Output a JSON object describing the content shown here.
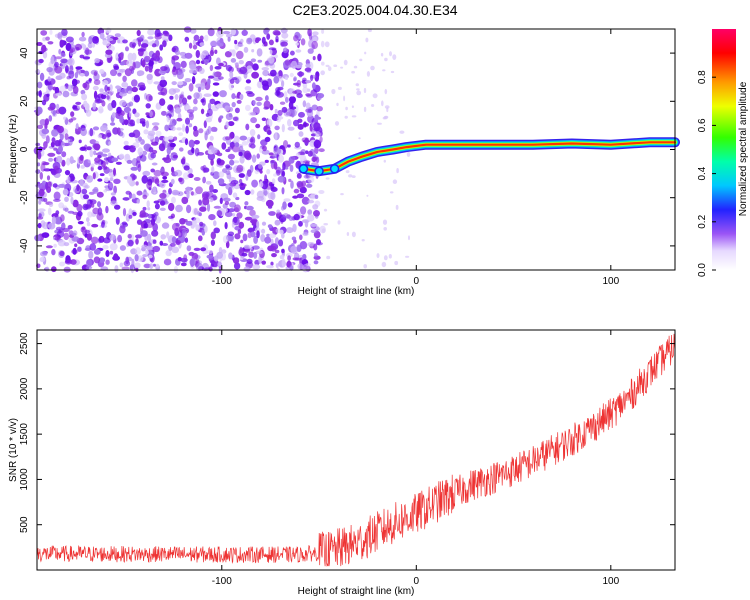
{
  "page_title": "C2E3.2025.004.04.30.E34",
  "chart_data": [
    {
      "type": "heatmap",
      "title": "C2E3.2025.004.04.30.E34",
      "xlabel": "Height of straight line (km)",
      "ylabel": "Frequency (Hz)",
      "xlim": [
        -195,
        133
      ],
      "ylim": [
        -50,
        50
      ],
      "x_ticks": [
        -100,
        0,
        100
      ],
      "x_tick_labels": [
        "-100",
        "0",
        "100"
      ],
      "y_ticks": [
        -40,
        -20,
        0,
        20,
        40
      ],
      "y_tick_labels": [
        "-40",
        "-20",
        "0",
        "20",
        "40"
      ],
      "colorbar": {
        "label": "Normalized spectral amplitude",
        "range": [
          0,
          1
        ],
        "ticks": [
          0.0,
          0.2,
          0.4,
          0.6,
          0.8
        ],
        "tick_labels": [
          "0.0",
          "0.2",
          "0.4",
          "0.6",
          "0.8"
        ]
      },
      "noise_region_x": [
        -195,
        -48
      ],
      "ridge": [
        {
          "x": -58,
          "y": -8,
          "amp": 0.35
        },
        {
          "x": -50,
          "y": -9,
          "amp": 0.4
        },
        {
          "x": -42,
          "y": -8,
          "amp": 0.5
        },
        {
          "x": -35,
          "y": -5,
          "amp": 0.5
        },
        {
          "x": -28,
          "y": -3,
          "amp": 0.55
        },
        {
          "x": -20,
          "y": -1,
          "amp": 0.6
        },
        {
          "x": -12,
          "y": 0,
          "amp": 0.7
        },
        {
          "x": -5,
          "y": 1,
          "amp": 0.75
        },
        {
          "x": 5,
          "y": 2,
          "amp": 0.85
        },
        {
          "x": 20,
          "y": 2,
          "amp": 0.9
        },
        {
          "x": 40,
          "y": 2,
          "amp": 0.9
        },
        {
          "x": 60,
          "y": 2,
          "amp": 0.92
        },
        {
          "x": 80,
          "y": 2.5,
          "amp": 0.95
        },
        {
          "x": 100,
          "y": 2,
          "amp": 0.95
        },
        {
          "x": 120,
          "y": 3,
          "amp": 0.95
        },
        {
          "x": 133,
          "y": 3,
          "amp": 0.95
        }
      ]
    },
    {
      "type": "line",
      "xlabel": "Height of straight line (km)",
      "ylabel": "SNR (10 * v/v)",
      "xlim": [
        -195,
        133
      ],
      "ylim": [
        0,
        2650
      ],
      "x_ticks": [
        -100,
        0,
        100
      ],
      "x_tick_labels": [
        "-100",
        "0",
        "100"
      ],
      "y_ticks": [
        500,
        1000,
        1500,
        2000,
        2500
      ],
      "y_tick_labels": [
        "500",
        "1000",
        "1500",
        "2000",
        "2500"
      ],
      "color": "#ee3333",
      "series": [
        {
          "x": [
            -195,
            -150,
            -100,
            -60,
            -45,
            -30,
            -20,
            -10,
            0,
            10,
            20,
            30,
            40,
            50,
            60,
            70,
            80,
            90,
            100,
            110,
            120,
            133
          ],
          "y": [
            180,
            175,
            170,
            170,
            200,
            300,
            420,
            530,
            620,
            740,
            850,
            950,
            1020,
            1100,
            1200,
            1320,
            1430,
            1570,
            1720,
            1920,
            2180,
            2480
          ]
        }
      ]
    }
  ]
}
